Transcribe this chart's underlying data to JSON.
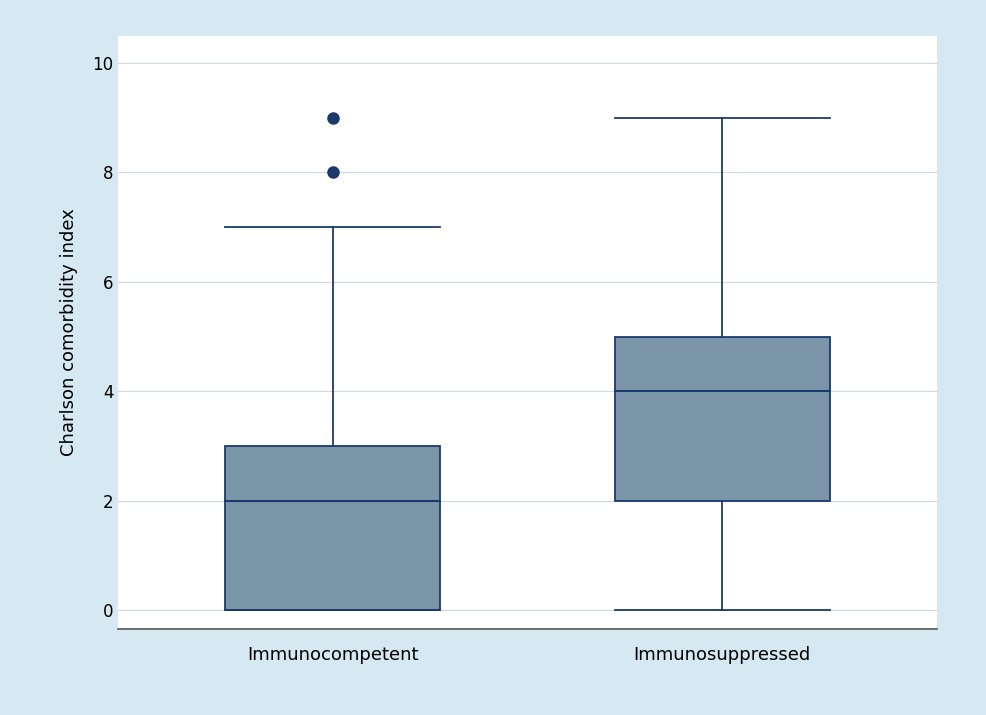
{
  "groups": [
    "Immunocompetent",
    "Immunosuppressed"
  ],
  "boxes": [
    {
      "label": "Immunocompetent",
      "q1": 0,
      "median": 2,
      "q3": 3,
      "whisker_low": 0,
      "whisker_high": 7,
      "outliers": [
        8,
        9
      ]
    },
    {
      "label": "Immunosuppressed",
      "q1": 2,
      "median": 4,
      "q3": 5,
      "whisker_low": 0,
      "whisker_high": 9,
      "outliers": []
    }
  ],
  "ylabel": "Charlson comorbidity index",
  "ylim": [
    -0.35,
    10.5
  ],
  "yticks": [
    0,
    2,
    4,
    6,
    8,
    10
  ],
  "box_color": "#7B96A9",
  "box_edge_color": "#1B3A6B",
  "median_color": "#1B3A6B",
  "whisker_color": "#1B3A6B",
  "outlier_color": "#1B3A6B",
  "background_color": "#D6E8F2",
  "plot_background_color": "#FFFFFF",
  "grid_color": "#D0D8E0",
  "box_width": 0.55,
  "positions": [
    1,
    2
  ],
  "xlim": [
    0.45,
    2.55
  ]
}
